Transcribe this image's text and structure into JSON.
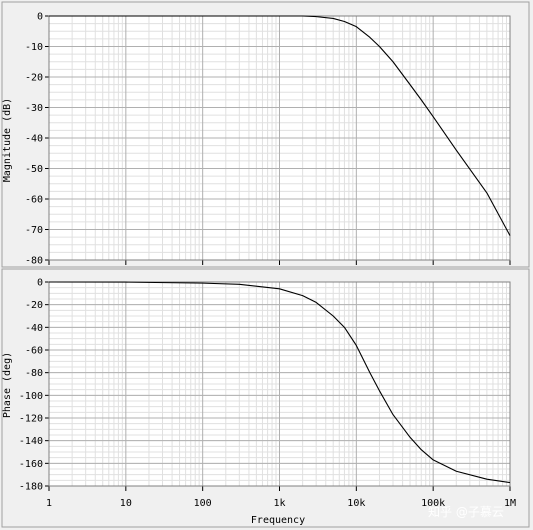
{
  "chart_data": [
    {
      "type": "line",
      "title": "",
      "xlabel": "",
      "ylabel": "Magnitude (dB)",
      "xscale": "log",
      "xlim": [
        1,
        1000000
      ],
      "ylim": [
        -80,
        0
      ],
      "grid": true,
      "yticks": [
        0,
        -10,
        -20,
        -30,
        -40,
        -50,
        -60,
        -70,
        -80
      ],
      "series": [
        {
          "x": [
            1,
            10,
            100,
            1000,
            2000,
            3000,
            5000,
            7000,
            10000,
            15000,
            20000,
            30000,
            50000,
            70000,
            100000,
            200000,
            500000,
            1000000
          ],
          "y": [
            0,
            0,
            0,
            0,
            0,
            -0.2,
            -0.8,
            -1.8,
            -3.5,
            -7,
            -10,
            -15,
            -22.5,
            -27.5,
            -33,
            -44,
            -58,
            -72
          ]
        }
      ]
    },
    {
      "type": "line",
      "title": "",
      "xlabel": "Frequency",
      "ylabel": "Phase (deg)",
      "xscale": "log",
      "xlim": [
        1,
        1000000
      ],
      "ylim": [
        -180,
        0
      ],
      "grid": true,
      "yticks": [
        0,
        -20,
        -40,
        -60,
        -80,
        -100,
        -120,
        -140,
        -160,
        -180
      ],
      "xticks": [
        1,
        10,
        100,
        1000,
        10000,
        100000,
        1000000
      ],
      "xticklabels": [
        "1",
        "10",
        "100",
        "1k",
        "10k",
        "100k",
        "1M"
      ],
      "series": [
        {
          "x": [
            1,
            10,
            100,
            300,
            1000,
            2000,
            3000,
            5000,
            7000,
            10000,
            15000,
            20000,
            30000,
            50000,
            70000,
            100000,
            200000,
            500000,
            1000000
          ],
          "y": [
            0,
            -0.1,
            -1,
            -2,
            -6,
            -12,
            -18,
            -30,
            -40,
            -56,
            -80,
            -96,
            -117,
            -137,
            -148,
            -157,
            -167,
            -174,
            -177
          ]
        }
      ]
    }
  ],
  "watermark": "知乎 @子慕云"
}
